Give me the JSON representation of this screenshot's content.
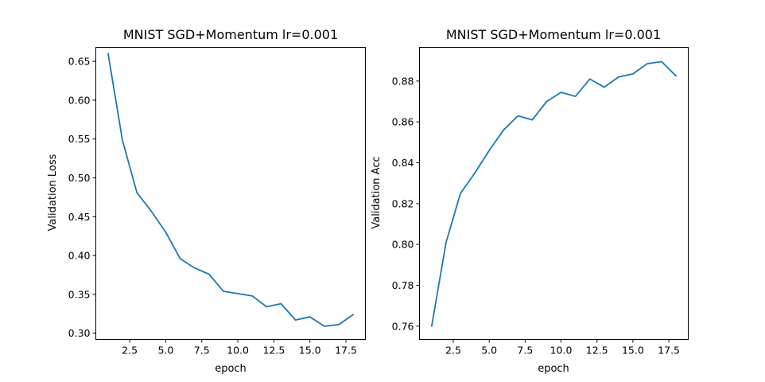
{
  "chart_data": [
    {
      "type": "line",
      "title": "MNIST SGD+Momentum lr=0.001",
      "xlabel": "epoch",
      "ylabel": "Validation Loss",
      "xlim": [
        0.15,
        18.85
      ],
      "ylim": [
        0.292,
        0.668
      ],
      "x_ticks": [
        2.5,
        5.0,
        7.5,
        10.0,
        12.5,
        15.0,
        17.5
      ],
      "x_tick_labels": [
        "2.5",
        "5.0",
        "7.5",
        "10.0",
        "12.5",
        "15.0",
        "17.5"
      ],
      "y_ticks": [
        0.3,
        0.35,
        0.4,
        0.45,
        0.5,
        0.55,
        0.6,
        0.65
      ],
      "y_tick_labels": [
        "0.30",
        "0.35",
        "0.40",
        "0.45",
        "0.50",
        "0.55",
        "0.60",
        "0.65"
      ],
      "grid": false,
      "color": "#1f77b4",
      "x": [
        1,
        2,
        3,
        4,
        5,
        6,
        7,
        8,
        9,
        10,
        11,
        12,
        13,
        14,
        15,
        16,
        17,
        18
      ],
      "values": [
        0.66,
        0.548,
        0.481,
        0.457,
        0.43,
        0.396,
        0.384,
        0.376,
        0.354,
        0.351,
        0.348,
        0.334,
        0.338,
        0.317,
        0.321,
        0.309,
        0.311,
        0.324
      ]
    },
    {
      "type": "line",
      "title": "MNIST SGD+Momentum lr=0.001",
      "xlabel": "epoch",
      "ylabel": "Validation Acc",
      "xlim": [
        0.15,
        18.85
      ],
      "ylim": [
        0.7535,
        0.8965
      ],
      "x_ticks": [
        2.5,
        5.0,
        7.5,
        10.0,
        12.5,
        15.0,
        17.5
      ],
      "x_tick_labels": [
        "2.5",
        "5.0",
        "7.5",
        "10.0",
        "12.5",
        "15.0",
        "17.5"
      ],
      "y_ticks": [
        0.76,
        0.78,
        0.8,
        0.82,
        0.84,
        0.86,
        0.88
      ],
      "y_tick_labels": [
        "0.76",
        "0.78",
        "0.80",
        "0.82",
        "0.84",
        "0.86",
        "0.88"
      ],
      "grid": false,
      "color": "#1f77b4",
      "x": [
        1,
        2,
        3,
        4,
        5,
        6,
        7,
        8,
        9,
        10,
        11,
        12,
        13,
        14,
        15,
        16,
        17,
        18
      ],
      "values": [
        0.76,
        0.801,
        0.825,
        0.835,
        0.846,
        0.856,
        0.863,
        0.861,
        0.87,
        0.8745,
        0.8725,
        0.881,
        0.877,
        0.882,
        0.8835,
        0.8885,
        0.8895,
        0.8825
      ]
    }
  ]
}
